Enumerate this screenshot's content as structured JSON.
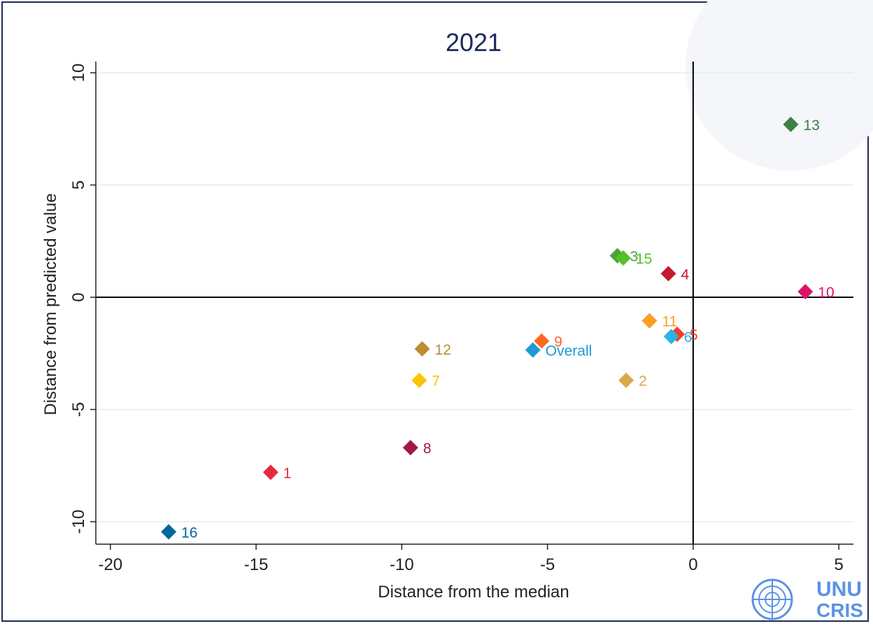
{
  "chart_data": {
    "type": "scatter",
    "title": "2021",
    "xlabel": "Distance from the median",
    "ylabel": "Distance from predicted value",
    "xlim": [
      -20.5,
      5.5
    ],
    "ylim": [
      -11,
      10.5
    ],
    "xticks": [
      -20,
      -15,
      -10,
      -5,
      0,
      5
    ],
    "yticks": [
      -10,
      -5,
      0,
      5,
      10
    ],
    "grid": true,
    "reference_lines": {
      "x": 0,
      "y": 0
    },
    "points": [
      {
        "label": "1",
        "x": -14.5,
        "y": -7.8,
        "color": "#e8283c"
      },
      {
        "label": "2",
        "x": -2.3,
        "y": -3.7,
        "color": "#d9a84a"
      },
      {
        "label": "3",
        "x": -2.6,
        "y": 1.85,
        "color": "#4ca23a"
      },
      {
        "label": "4",
        "x": -0.85,
        "y": 1.05,
        "color": "#c4192d"
      },
      {
        "label": "5",
        "x": -0.55,
        "y": -1.65,
        "color": "#ef3d2b"
      },
      {
        "label": "6",
        "x": -0.75,
        "y": -1.75,
        "color": "#2bb4e2"
      },
      {
        "label": "7",
        "x": -9.4,
        "y": -3.7,
        "color": "#fcc30b"
      },
      {
        "label": "8",
        "x": -9.7,
        "y": -6.7,
        "color": "#a21942"
      },
      {
        "label": "9",
        "x": -5.2,
        "y": -1.95,
        "color": "#fd6925"
      },
      {
        "label": "10",
        "x": 3.85,
        "y": 0.25,
        "color": "#dd1367"
      },
      {
        "label": "11",
        "x": -1.5,
        "y": -1.05,
        "color": "#fd9d24"
      },
      {
        "label": "12",
        "x": -9.3,
        "y": -2.3,
        "color": "#bf8b2e"
      },
      {
        "label": "13",
        "x": 3.35,
        "y": 7.7,
        "color": "#3f7e44"
      },
      {
        "label": "15",
        "x": -2.4,
        "y": 1.75,
        "color": "#56c02b"
      },
      {
        "label": "16",
        "x": -18,
        "y": -10.45,
        "color": "#00689d"
      },
      {
        "label": "Overall",
        "x": -5.5,
        "y": -2.35,
        "color": "#1f9ad6"
      }
    ]
  },
  "logo": {
    "line1": "UNU",
    "line2": "CRIS"
  },
  "colors": {
    "border": "#1f2a5a",
    "logo_blue": "#5b92e5"
  }
}
